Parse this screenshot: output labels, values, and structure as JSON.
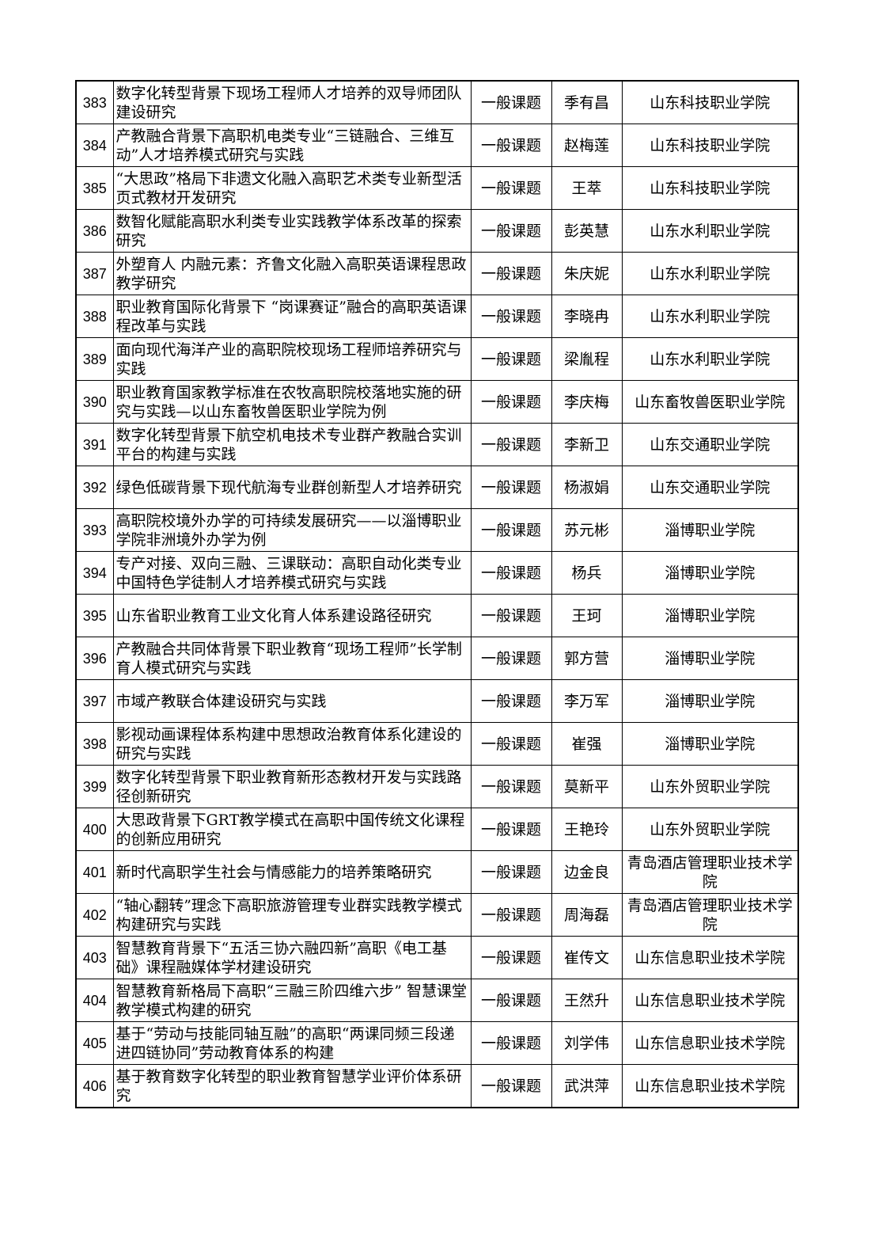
{
  "rows": [
    {
      "no": "383",
      "title": "数字化转型背景下现场工程师人才培养的双导师团队建设研究",
      "type": "一般课题",
      "leader": "季有昌",
      "institution": "山东科技职业学院"
    },
    {
      "no": "384",
      "title": "产教融合背景下高职机电类专业“三链融合、三维互动”人才培养模式研究与实践",
      "type": "一般课题",
      "leader": "赵梅莲",
      "institution": "山东科技职业学院"
    },
    {
      "no": "385",
      "title": "“大思政”格局下非遗文化融入高职艺术类专业新型活页式教材开发研究",
      "type": "一般课题",
      "leader": "王萃",
      "institution": "山东科技职业学院"
    },
    {
      "no": "386",
      "title": "数智化赋能高职水利类专业实践教学体系改革的探索研究",
      "type": "一般课题",
      "leader": "彭英慧",
      "institution": "山东水利职业学院"
    },
    {
      "no": "387",
      "title": "外塑育人 内融元素：齐鲁文化融入高职英语课程思政教学研究",
      "type": "一般课题",
      "leader": "朱庆妮",
      "institution": "山东水利职业学院"
    },
    {
      "no": "388",
      "title": "职业教育国际化背景下 “岗课赛证”融合的高职英语课程改革与实践",
      "type": "一般课题",
      "leader": "李晓冉",
      "institution": "山东水利职业学院"
    },
    {
      "no": "389",
      "title": "面向现代海洋产业的高职院校现场工程师培养研究与实践",
      "type": "一般课题",
      "leader": "梁胤程",
      "institution": "山东水利职业学院"
    },
    {
      "no": "390",
      "title": "职业教育国家教学标准在农牧高职院校落地实施的研究与实践—以山东畜牧兽医职业学院为例",
      "type": "一般课题",
      "leader": "李庆梅",
      "institution": "山东畜牧兽医职业学院"
    },
    {
      "no": "391",
      "title": "数字化转型背景下航空机电技术专业群产教融合实训平台的构建与实践",
      "type": "一般课题",
      "leader": "李新卫",
      "institution": "山东交通职业学院"
    },
    {
      "no": "392",
      "title": "绿色低碳背景下现代航海专业群创新型人才培养研究",
      "type": "一般课题",
      "leader": "杨淑娟",
      "institution": "山东交通职业学院"
    },
    {
      "no": "393",
      "title": "高职院校境外办学的可持续发展研究——以淄博职业学院非洲境外办学为例",
      "type": "一般课题",
      "leader": "苏元彬",
      "institution": "淄博职业学院"
    },
    {
      "no": "394",
      "title": "专产对接、双向三融、三课联动：高职自动化类专业中国特色学徒制人才培养模式研究与实践",
      "type": "一般课题",
      "leader": "杨兵",
      "institution": "淄博职业学院"
    },
    {
      "no": "395",
      "title": "山东省职业教育工业文化育人体系建设路径研究",
      "type": "一般课题",
      "leader": "王珂",
      "institution": "淄博职业学院"
    },
    {
      "no": "396",
      "title": "产教融合共同体背景下职业教育“现场工程师”长学制育人模式研究与实践",
      "type": "一般课题",
      "leader": "郭方营",
      "institution": "淄博职业学院"
    },
    {
      "no": "397",
      "title": "市域产教联合体建设研究与实践",
      "type": "一般课题",
      "leader": "李万军",
      "institution": "淄博职业学院"
    },
    {
      "no": "398",
      "title": "影视动画课程体系构建中思想政治教育体系化建设的研究与实践",
      "type": "一般课题",
      "leader": "崔强",
      "institution": "淄博职业学院"
    },
    {
      "no": "399",
      "title": "数字化转型背景下职业教育新形态教材开发与实践路径创新研究",
      "type": "一般课题",
      "leader": "莫新平",
      "institution": "山东外贸职业学院"
    },
    {
      "no": "400",
      "title": "大思政背景下GRT教学模式在高职中国传统文化课程的创新应用研究",
      "type": "一般课题",
      "leader": "王艳玲",
      "institution": "山东外贸职业学院"
    },
    {
      "no": "401",
      "title": "新时代高职学生社会与情感能力的培养策略研究",
      "type": "一般课题",
      "leader": "边金良",
      "institution": "青岛酒店管理职业技术学院"
    },
    {
      "no": "402",
      "title": "“轴心翻转”理念下高职旅游管理专业群实践教学模式构建研究与实践",
      "type": "一般课题",
      "leader": "周海磊",
      "institution": "青岛酒店管理职业技术学院"
    },
    {
      "no": "403",
      "title": "智慧教育背景下“五活三协六融四新”高职《电工基础》课程融媒体学材建设研究",
      "type": "一般课题",
      "leader": "崔传文",
      "institution": "山东信息职业技术学院"
    },
    {
      "no": "404",
      "title": "智慧教育新格局下高职“三融三阶四维六步” 智慧课堂教学模式构建的研究",
      "type": "一般课题",
      "leader": "王然升",
      "institution": "山东信息职业技术学院"
    },
    {
      "no": "405",
      "title": "基于“劳动与技能同轴互融”的高职“两课同频三段递进四链协同”劳动教育体系的构建",
      "type": "一般课题",
      "leader": "刘学伟",
      "institution": "山东信息职业技术学院"
    },
    {
      "no": "406",
      "title": "基于教育数字化转型的职业教育智慧学业评价体系研究",
      "type": "一般课题",
      "leader": "武洪萍",
      "institution": "山东信息职业技术学院"
    }
  ]
}
